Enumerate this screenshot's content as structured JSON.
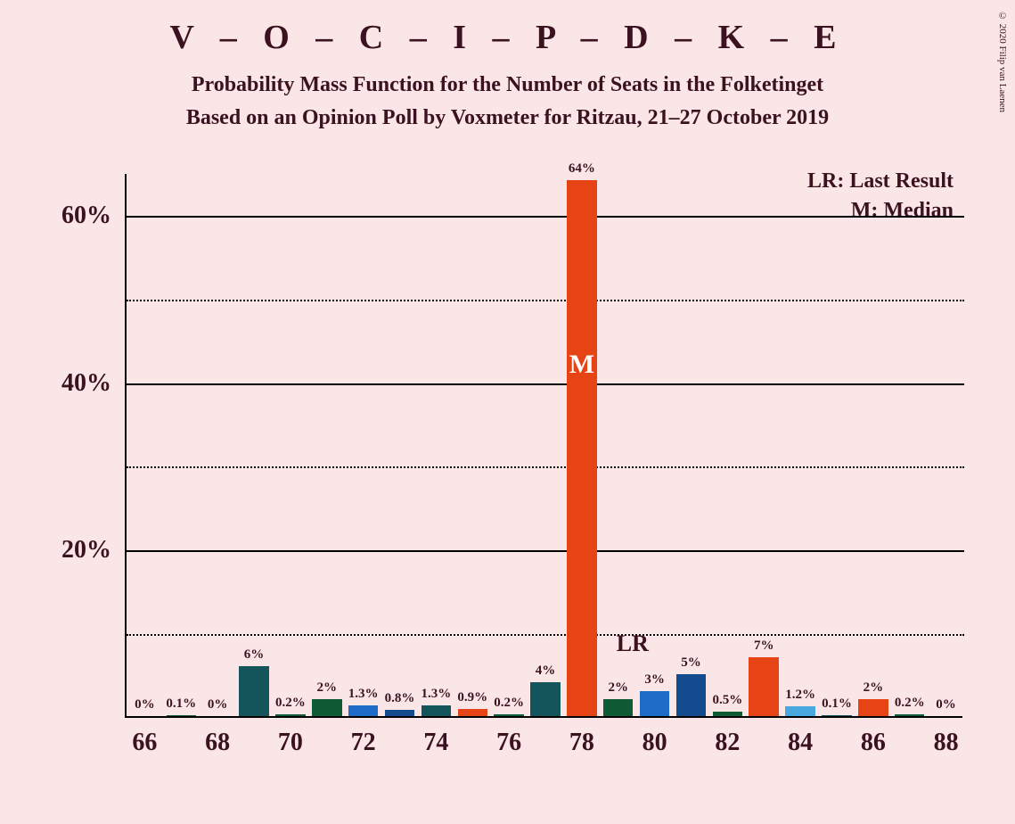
{
  "title": "V – O – C – I – P – D – K – E",
  "subtitle1": "Probability Mass Function for the Number of Seats in the Folketinget",
  "subtitle2": "Based on an Opinion Poll by Voxmeter for Ritzau, 21–27 October 2019",
  "legend": {
    "lr": "LR: Last Result",
    "m": "M: Median"
  },
  "copyright": "© 2020 Filip van Laenen",
  "ylim": [
    0,
    65
  ],
  "yticks_major": [
    20,
    40,
    60
  ],
  "yticks_minor": [
    10,
    30,
    50
  ],
  "xlim": [
    65.5,
    88.5
  ],
  "xticks": [
    66,
    68,
    70,
    72,
    74,
    76,
    78,
    80,
    82,
    84,
    86,
    88
  ],
  "bar_width": 0.82,
  "colors": {
    "teal": "#14555c",
    "green": "#0e5b36",
    "blue": "#1c6cc8",
    "darkblue": "#134b8e",
    "orange": "#e64415",
    "lightblue": "#4aa8e0"
  },
  "lr_x": 79,
  "lr_y": 9,
  "median_bar_index": 12,
  "bars": [
    {
      "x": 66,
      "value": 0,
      "label": "0%",
      "color": "teal"
    },
    {
      "x": 67,
      "value": 0.1,
      "label": "0.1%",
      "color": "green"
    },
    {
      "x": 68,
      "value": 0,
      "label": "0%",
      "color": "blue"
    },
    {
      "x": 69,
      "value": 6,
      "label": "6%",
      "color": "teal"
    },
    {
      "x": 70,
      "value": 0.2,
      "label": "0.2%",
      "color": "green"
    },
    {
      "x": 71,
      "value": 2,
      "label": "2%",
      "color": "green"
    },
    {
      "x": 72,
      "value": 1.3,
      "label": "1.3%",
      "color": "blue"
    },
    {
      "x": 73,
      "value": 0.8,
      "label": "0.8%",
      "color": "darkblue"
    },
    {
      "x": 74,
      "value": 1.3,
      "label": "1.3%",
      "color": "teal"
    },
    {
      "x": 75,
      "value": 0.9,
      "label": "0.9%",
      "color": "orange"
    },
    {
      "x": 76,
      "value": 0.2,
      "label": "0.2%",
      "color": "green"
    },
    {
      "x": 77,
      "value": 4,
      "label": "4%",
      "color": "teal"
    },
    {
      "x": 78,
      "value": 64,
      "label": "64%",
      "color": "orange"
    },
    {
      "x": 79,
      "value": 2,
      "label": "2%",
      "color": "green"
    },
    {
      "x": 80,
      "value": 3,
      "label": "3%",
      "color": "blue"
    },
    {
      "x": 81,
      "value": 5,
      "label": "5%",
      "color": "darkblue"
    },
    {
      "x": 82,
      "value": 0.5,
      "label": "0.5%",
      "color": "green"
    },
    {
      "x": 83,
      "value": 7,
      "label": "7%",
      "color": "orange"
    },
    {
      "x": 84,
      "value": 1.2,
      "label": "1.2%",
      "color": "lightblue"
    },
    {
      "x": 85,
      "value": 0.1,
      "label": "0.1%",
      "color": "teal"
    },
    {
      "x": 86,
      "value": 2,
      "label": "2%",
      "color": "orange"
    },
    {
      "x": 87,
      "value": 0.2,
      "label": "0.2%",
      "color": "green"
    },
    {
      "x": 88,
      "value": 0,
      "label": "0%",
      "color": "blue"
    }
  ]
}
